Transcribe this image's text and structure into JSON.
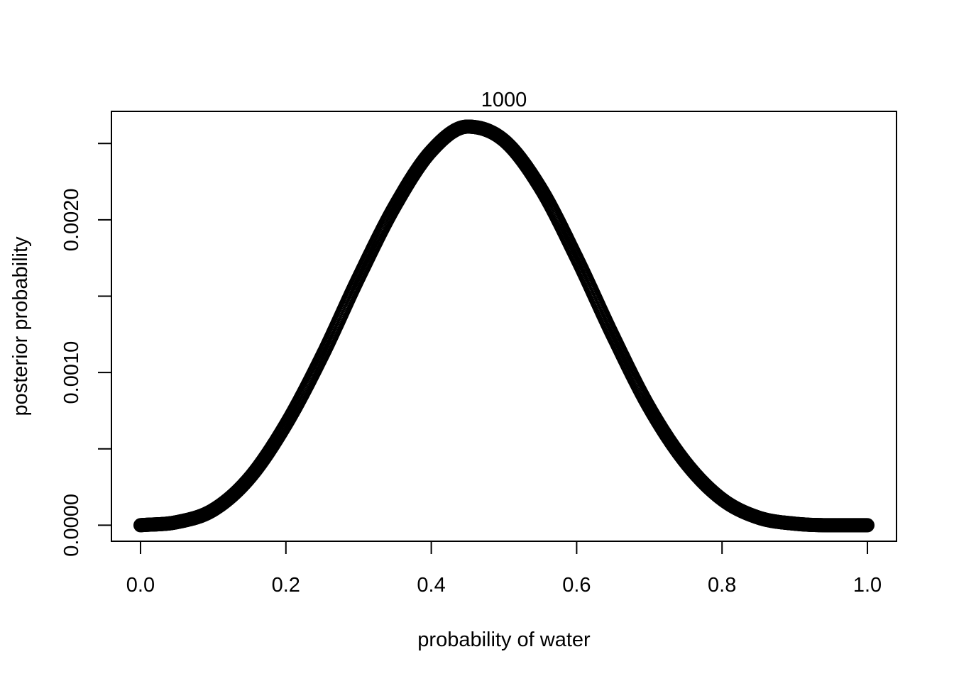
{
  "chart_data": {
    "type": "scatter",
    "title": "1000",
    "xlabel": "probability of water",
    "ylabel": "posterior probability",
    "xlim": [
      -0.04,
      1.04
    ],
    "ylim": [
      -0.000105,
      0.00271
    ],
    "x_ticks": [
      0.0,
      0.2,
      0.4,
      0.6,
      0.8,
      1.0
    ],
    "x_tick_labels": [
      "0.0",
      "0.2",
      "0.4",
      "0.6",
      "0.8",
      "1.0"
    ],
    "y_ticks": [
      0.0,
      0.0005,
      0.001,
      0.0015,
      0.002,
      0.0025
    ],
    "y_tick_labels": [
      "0.0000",
      "",
      "0.0010",
      "",
      "0.0020",
      ""
    ],
    "grid": false,
    "legend": "none",
    "marker": "open-circle",
    "series": [
      {
        "color": "#000000",
        "x": [
          0.0,
          0.05,
          0.1,
          0.15,
          0.2,
          0.25,
          0.3,
          0.35,
          0.4,
          0.45,
          0.5,
          0.55,
          0.6,
          0.65,
          0.7,
          0.75,
          0.8,
          0.85,
          0.9,
          0.95,
          1.0
        ],
        "y": [
          0.0,
          2e-05,
          0.0001,
          0.00031,
          0.00066,
          0.00111,
          0.00162,
          0.00209,
          0.00245,
          0.00261,
          0.00252,
          0.00221,
          0.00175,
          0.00124,
          0.00077,
          0.00041,
          0.00017,
          5e-05,
          1e-05,
          0.0,
          0.0
        ]
      }
    ]
  }
}
